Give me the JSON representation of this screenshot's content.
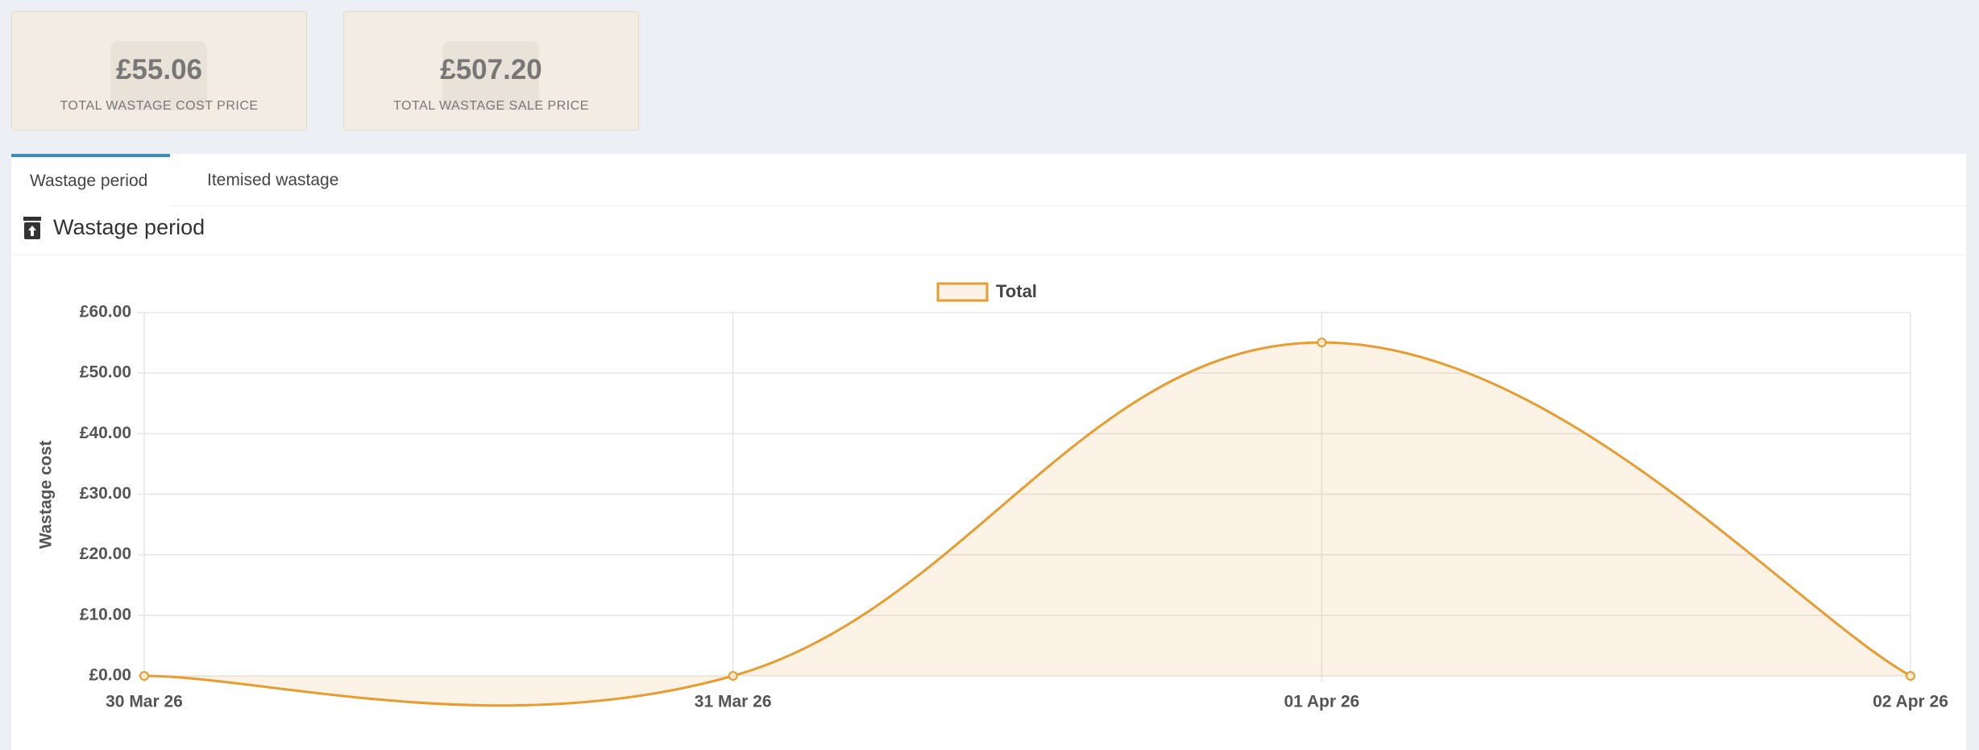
{
  "cards": [
    {
      "value": "£55.06",
      "label": "TOTAL WASTAGE COST PRICE"
    },
    {
      "value": "£507.20",
      "label": "TOTAL WASTAGE SALE PRICE"
    }
  ],
  "tabs": [
    "Wastage period",
    "Itemised wastage"
  ],
  "panel_title": "Wastage period",
  "chart_data": {
    "type": "line",
    "y_label": "Wastage cost",
    "categories": [
      "30 Mar 26",
      "31 Mar 26",
      "01 Apr 26",
      "02 Apr 26"
    ],
    "series": [
      {
        "name": "Total",
        "color": "#e89b2f",
        "values": [
          0,
          0,
          55.06,
          0
        ]
      }
    ],
    "ylim": [
      0,
      60
    ],
    "yticks": [
      {
        "value": 0,
        "label": "£0.00"
      },
      {
        "value": 10,
        "label": "£10.00"
      },
      {
        "value": 20,
        "label": "£20.00"
      },
      {
        "value": 30,
        "label": "£30.00"
      },
      {
        "value": 40,
        "label": "£40.00"
      },
      {
        "value": 50,
        "label": "£50.00"
      },
      {
        "value": 60,
        "label": "£60.00"
      }
    ],
    "grid": true,
    "fill": true,
    "legend": "top"
  }
}
